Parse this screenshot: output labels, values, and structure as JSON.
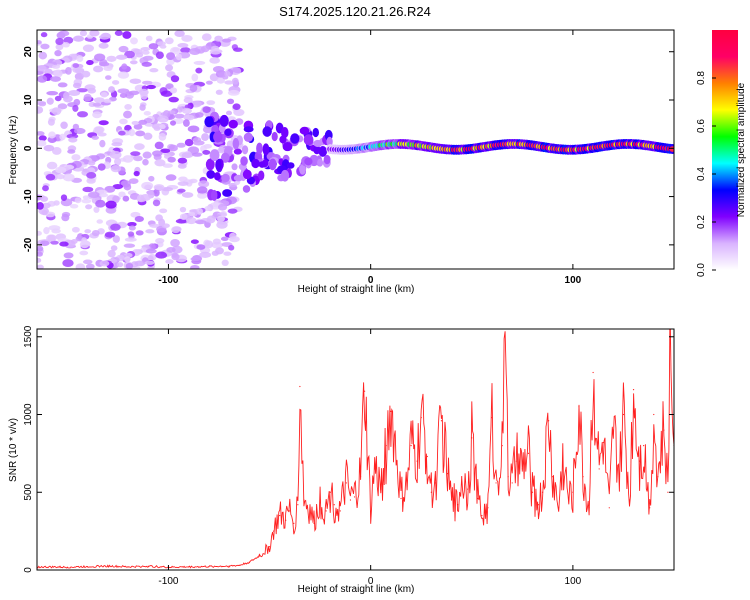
{
  "chart_data": [
    {
      "type": "heatmap",
      "title": "S174.2025.120.21.26.R24",
      "xlabel": "Height of straight line (km)",
      "ylabel": "Frequency (Hz)",
      "xlim": [
        -165,
        150
      ],
      "ylim": [
        -25,
        24.5
      ],
      "xticks": [
        -100,
        0,
        100
      ],
      "yticks": [
        -20,
        -10,
        0,
        10,
        20
      ],
      "colorbar": {
        "label": "Normalized spectral amplitude",
        "range": [
          0,
          1
        ],
        "ticks": [
          0.0,
          0.2,
          0.4,
          0.6,
          0.8
        ],
        "tick_labels": [
          "0.0",
          "0.2",
          "0.4",
          "0.6",
          "0.8"
        ],
        "colormap": [
          "#ffffff",
          "#d9b3ff",
          "#8000ff",
          "#0000ff",
          "#00ffff",
          "#00ff00",
          "#ffff00",
          "#ff8000",
          "#ff0066",
          "#ff0040"
        ]
      },
      "features": [
        {
          "description": "broadband noise",
          "x_range": [
            -165,
            -65
          ],
          "freq_range": [
            -25,
            24
          ],
          "amplitude": 0.05
        },
        {
          "description": "spreading burst",
          "x_range": [
            -80,
            -20
          ],
          "freq_range": [
            -12,
            9
          ],
          "amplitude": 0.2
        },
        {
          "description": "narrow band near 0 Hz",
          "x_range": [
            -20,
            150
          ],
          "freq_range": [
            -1.5,
            2
          ],
          "amplitude_range": [
            0.2,
            1.0
          ]
        }
      ]
    },
    {
      "type": "line",
      "xlabel": "Height of straight line (km)",
      "ylabel": "SNR (10 * v/v)",
      "xlim": [
        -165,
        150
      ],
      "ylim": [
        0,
        1550
      ],
      "xticks": [
        -100,
        0,
        100
      ],
      "yticks": [
        0,
        500,
        1000,
        1500
      ],
      "color": "#ff2020",
      "series": [
        {
          "name": "SNR",
          "x": [
            -165,
            -150,
            -140,
            -130,
            -120,
            -110,
            -100,
            -90,
            -80,
            -70,
            -65,
            -60,
            -55,
            -50,
            -48,
            -45,
            -42,
            -40,
            -38,
            -36,
            -35,
            -33,
            -30,
            -28,
            -25,
            -22,
            -20,
            -18,
            -15,
            -12,
            -10,
            -8,
            -5,
            -3,
            0,
            2,
            5,
            8,
            10,
            13,
            15,
            18,
            20,
            23,
            25,
            28,
            30,
            32,
            35,
            38,
            40,
            43,
            45,
            48,
            50,
            53,
            55,
            58,
            60,
            62,
            65,
            67,
            68,
            70,
            72,
            75,
            78,
            80,
            83,
            85,
            88,
            90,
            93,
            95,
            98,
            100,
            103,
            105,
            108,
            110,
            113,
            115,
            118,
            120,
            123,
            125,
            128,
            130,
            133,
            135,
            138,
            140,
            142,
            145,
            147,
            148,
            150
          ],
          "values": [
            20,
            18,
            22,
            25,
            20,
            24,
            18,
            20,
            22,
            25,
            30,
            50,
            90,
            150,
            250,
            350,
            320,
            380,
            300,
            420,
            1180,
            450,
            380,
            300,
            450,
            380,
            500,
            420,
            380,
            560,
            450,
            470,
            600,
            1150,
            380,
            650,
            520,
            800,
            1020,
            700,
            460,
            540,
            800,
            700,
            980,
            730,
            500,
            560,
            960,
            620,
            450,
            420,
            600,
            520,
            850,
            460,
            350,
            400,
            980,
            560,
            800,
            1560,
            600,
            560,
            700,
            650,
            750,
            500,
            420,
            500,
            960,
            600,
            400,
            720,
            460,
            500,
            1050,
            600,
            400,
            1270,
            650,
            820,
            400,
            900,
            600,
            1000,
            450,
            1160,
            700,
            800,
            400,
            1000,
            600,
            900,
            500,
            1480,
            800
          ]
        }
      ]
    }
  ]
}
